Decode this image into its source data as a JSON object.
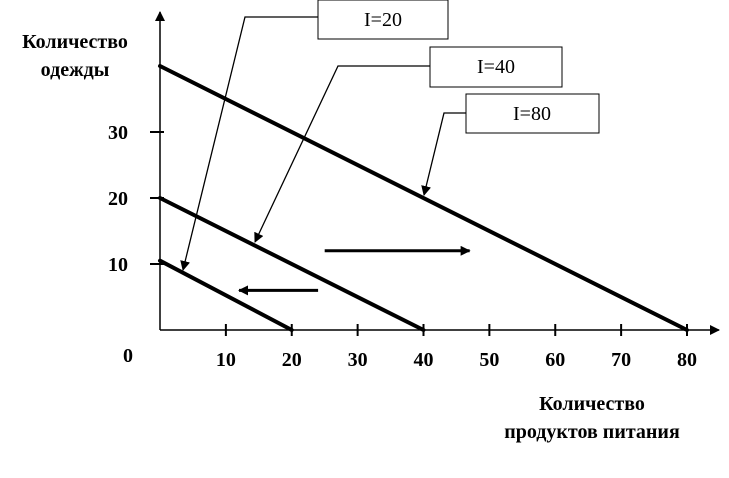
{
  "chart_data": {
    "type": "line",
    "xlabel_lines": [
      "Количество",
      "продуктов питания"
    ],
    "ylabel_lines": [
      "Количество",
      "одежды"
    ],
    "xlim": [
      0,
      80
    ],
    "ylim": [
      0,
      40
    ],
    "origin_label": "0",
    "x_ticks": [
      10,
      20,
      30,
      40,
      50,
      60,
      70,
      80
    ],
    "x_tick_labels": [
      "10",
      "20",
      "30",
      "40",
      "50",
      "60",
      "70",
      "80"
    ],
    "y_ticks": [
      10,
      20,
      30
    ],
    "y_tick_labels": [
      "10",
      "20",
      "30"
    ],
    "grid": false,
    "series": [
      {
        "name": "I=20",
        "x": [
          0,
          20
        ],
        "y": [
          10.5,
          0
        ]
      },
      {
        "name": "I=40",
        "x": [
          0,
          40
        ],
        "y": [
          20,
          0
        ]
      },
      {
        "name": "I=80",
        "x": [
          0,
          80
        ],
        "y": [
          40,
          0
        ]
      }
    ],
    "shift_arrows": [
      {
        "direction": "right",
        "from": [
          25,
          12
        ],
        "to": [
          47,
          12
        ]
      },
      {
        "direction": "left",
        "from": [
          24,
          6
        ],
        "to": [
          12,
          6
        ]
      }
    ],
    "line_color": "#000000"
  }
}
